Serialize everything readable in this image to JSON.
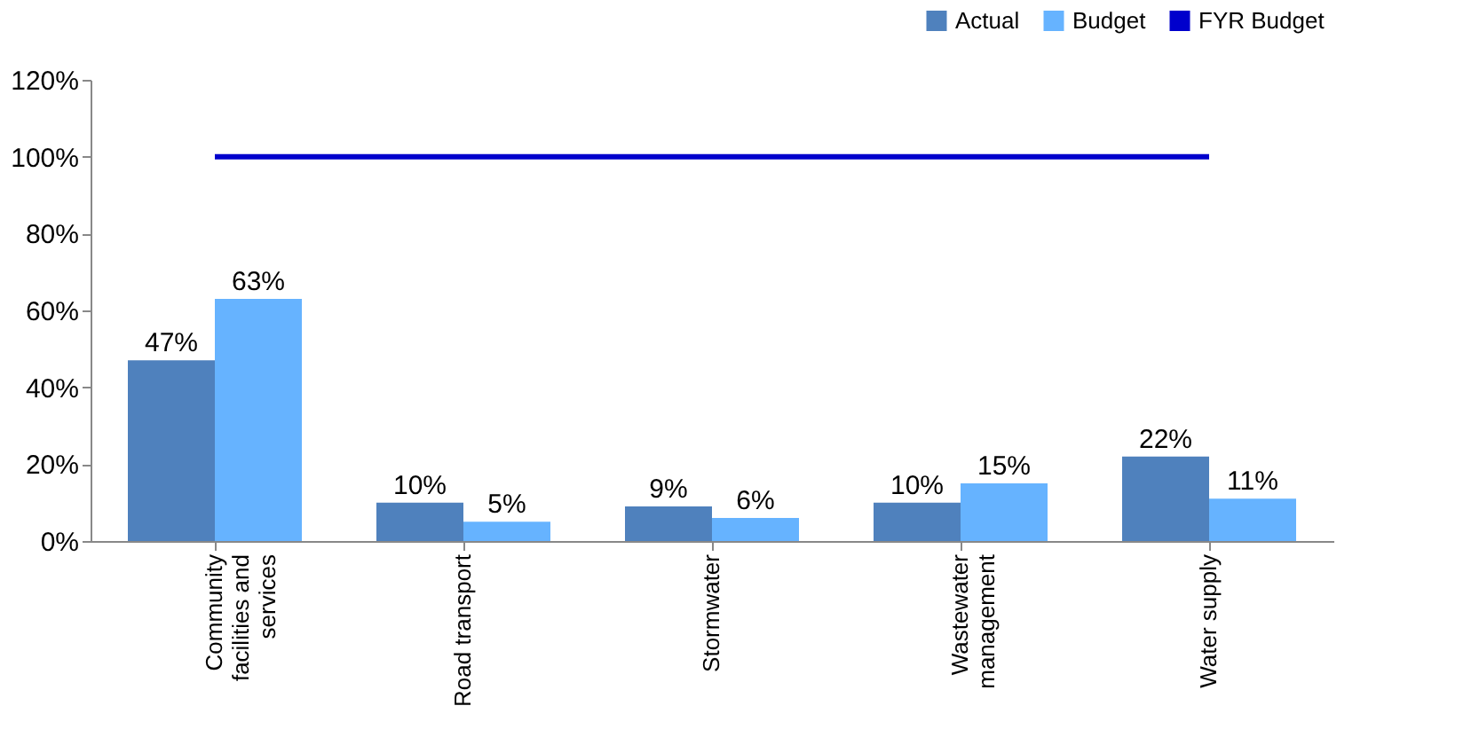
{
  "chart_data": {
    "type": "bar",
    "categories": [
      "Community facilities and services",
      "Road transport",
      "Stormwater",
      "Wastewater management",
      "Water supply"
    ],
    "series": [
      {
        "name": "Actual",
        "color": "#4f81bd",
        "values": [
          47,
          10,
          9,
          10,
          22
        ],
        "value_labels": [
          "47%",
          "10%",
          "9%",
          "10%",
          "22%"
        ]
      },
      {
        "name": "Budget",
        "color": "#66b3ff",
        "values": [
          63,
          5,
          6,
          15,
          11
        ],
        "value_labels": [
          "63%",
          "5%",
          "6%",
          "15%",
          "11%"
        ]
      },
      {
        "name": "FYR Budget",
        "type": "line",
        "color": "#0000cc",
        "values": [
          100,
          100,
          100,
          100,
          100
        ]
      }
    ],
    "ylim": [
      0,
      120
    ],
    "yticks": [
      {
        "value": 0,
        "label": "0%"
      },
      {
        "value": 20,
        "label": "20%"
      },
      {
        "value": 40,
        "label": "40%"
      },
      {
        "value": 60,
        "label": "60%"
      },
      {
        "value": 80,
        "label": "80%"
      },
      {
        "value": 100,
        "label": "100%"
      },
      {
        "value": 120,
        "label": "120%"
      }
    ],
    "grid": false,
    "legend": "top right"
  }
}
